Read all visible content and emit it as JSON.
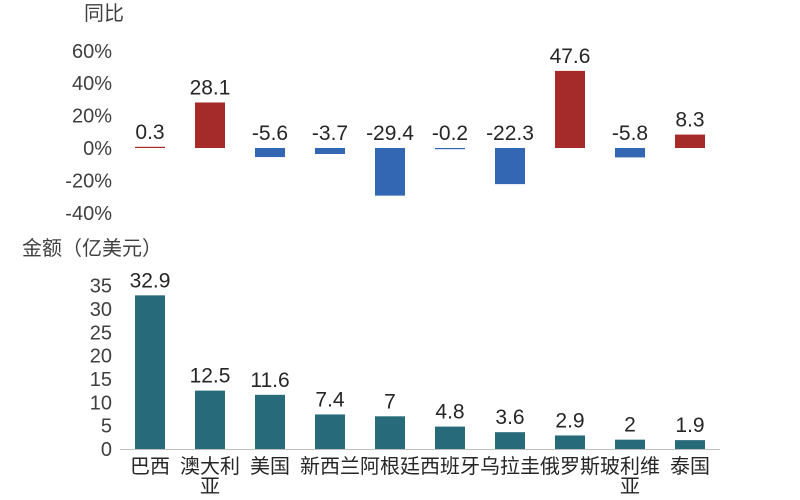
{
  "chart_data": [
    {
      "type": "bar",
      "title": "",
      "ylabel": "同比",
      "categories": [
        "巴西",
        "澳大利亚",
        "美国",
        "新西兰",
        "阿根廷",
        "西班牙",
        "乌拉圭",
        "俄罗斯",
        "玻利维亚",
        "泰国"
      ],
      "values": [
        0.3,
        28.1,
        -5.6,
        -3.7,
        -29.4,
        -0.2,
        -22.3,
        47.6,
        -5.8,
        8.3
      ],
      "ylim": [
        -40,
        60
      ],
      "yticks": [
        "60%",
        "40%",
        "20%",
        "0%",
        "-20%",
        "-40%"
      ],
      "grid": false,
      "colors": {
        "positive": "#A52A2A",
        "negative": "#3366B3"
      }
    },
    {
      "type": "bar",
      "title": "",
      "ylabel": "金额（亿美元）",
      "categories": [
        "巴西",
        "澳大利亚",
        "美国",
        "新西兰",
        "阿根廷",
        "西班牙",
        "乌拉圭",
        "俄罗斯",
        "玻利维亚",
        "泰国"
      ],
      "category_lines": [
        [
          "巴西"
        ],
        [
          "澳大利",
          "亚"
        ],
        [
          "美国"
        ],
        [
          "新西兰"
        ],
        [
          "阿根廷"
        ],
        [
          "西班牙"
        ],
        [
          "乌拉圭"
        ],
        [
          "俄罗斯"
        ],
        [
          "玻利维",
          "亚"
        ],
        [
          "泰国"
        ]
      ],
      "values": [
        32.9,
        12.5,
        11.6,
        7.4,
        7,
        4.8,
        3.6,
        2.9,
        2,
        1.9
      ],
      "ylim": [
        0,
        35
      ],
      "yticks": [
        "35",
        "30",
        "25",
        "20",
        "15",
        "10",
        "5",
        "0"
      ],
      "grid": false,
      "colors": {
        "bar": "#276A7A"
      }
    }
  ]
}
